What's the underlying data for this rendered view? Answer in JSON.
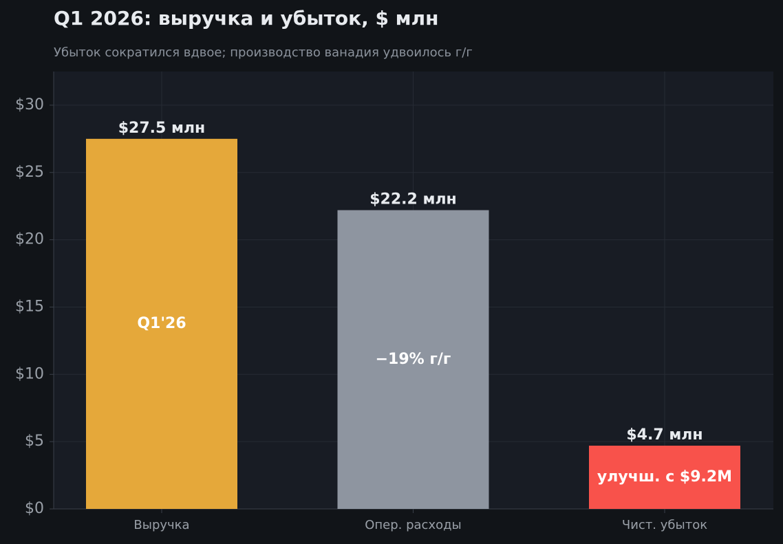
{
  "chart_data": {
    "type": "bar",
    "title": "Q1 2026: выручка и убыток, $ млн",
    "subtitle": "Убыток сократился вдвое; производство ванадия удвоилось г/г",
    "categories": [
      "Выручка",
      "Опер. расходы",
      "Чист. убыток"
    ],
    "values": [
      27.5,
      22.2,
      4.7
    ],
    "value_labels": [
      "$27.5 млн",
      "$22.2 млн",
      "$4.7 млн"
    ],
    "bar_annotations": [
      "Q1'26",
      "−19% г/г",
      "улучш. с $9.2M"
    ],
    "colors": [
      "#e5a83a",
      "#8e95a0",
      "#f8524b"
    ],
    "ylim": [
      0,
      32.5
    ],
    "yticks": [
      {
        "value": 0,
        "label": "$0"
      },
      {
        "value": 5,
        "label": "$5"
      },
      {
        "value": 10,
        "label": "$10"
      },
      {
        "value": 15,
        "label": "$15"
      },
      {
        "value": 20,
        "label": "$20"
      },
      {
        "value": 25,
        "label": "$25"
      },
      {
        "value": 30,
        "label": "$30"
      }
    ],
    "grid": true
  }
}
